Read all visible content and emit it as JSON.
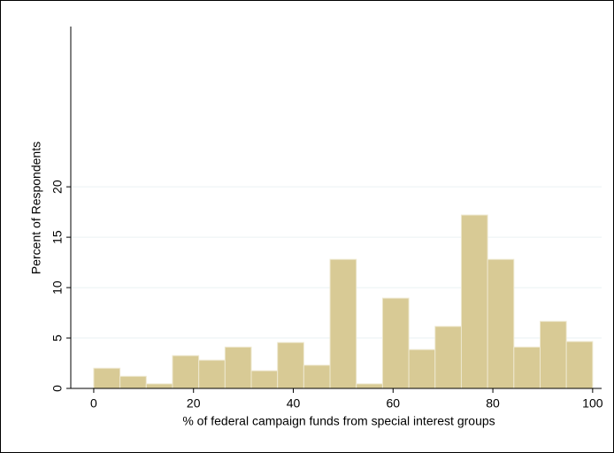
{
  "chart_data": {
    "type": "histogram",
    "x_label": "% of federal campaign funds from special interest groups",
    "y_label": "Percent of Respondents",
    "bins": [
      0,
      5.263,
      10.526,
      15.789,
      21.053,
      26.316,
      31.579,
      36.842,
      42.105,
      47.368,
      52.632,
      57.895,
      63.158,
      68.421,
      73.684,
      78.947,
      84.211,
      89.474,
      94.737,
      100
    ],
    "values": [
      2.0,
      1.2,
      0.45,
      3.25,
      2.8,
      4.1,
      1.75,
      4.55,
      2.3,
      12.8,
      0.45,
      8.95,
      3.85,
      6.15,
      17.2,
      12.8,
      4.1,
      6.65,
      4.65
    ],
    "color": "#d8ca95",
    "xlim": [
      -4.6,
      101.8
    ],
    "xticks": [
      0,
      20,
      40,
      60,
      80,
      100
    ],
    "ylim": [
      0,
      35.9
    ],
    "yticks": [
      0,
      5,
      10,
      15,
      20
    ],
    "grid": true
  }
}
